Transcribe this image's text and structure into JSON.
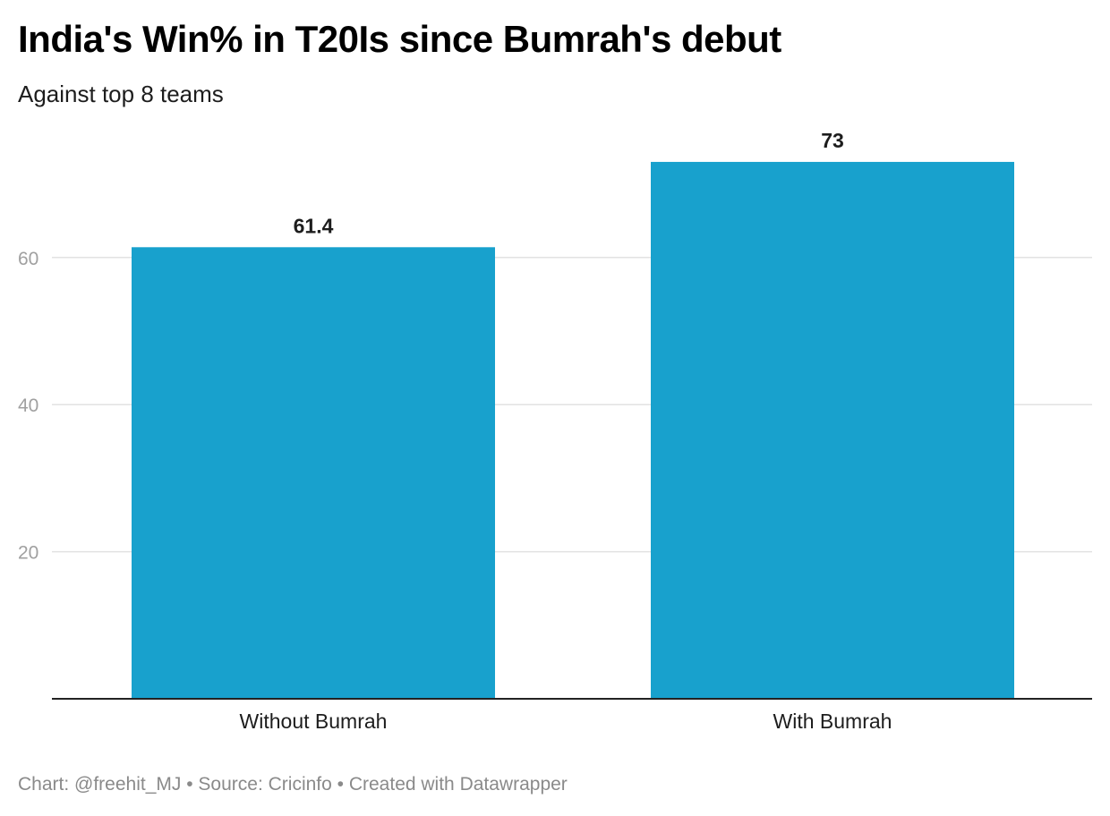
{
  "chart_data": {
    "type": "bar",
    "title": "India's Win% in T20Is since Bumrah's debut",
    "subtitle": "Against top 8 teams",
    "categories": [
      "Without Bumrah",
      "With Bumrah"
    ],
    "values": [
      61.4,
      73
    ],
    "value_labels": [
      "61.4",
      "73"
    ],
    "yticks": [
      20,
      40,
      60
    ],
    "ytick_labels": [
      "20",
      "40",
      "60"
    ],
    "ylim": [
      0,
      80
    ],
    "xlabel": "",
    "ylabel": "",
    "grid": true,
    "legend": "none",
    "bar_color": "#18a1cd"
  },
  "footer": {
    "chart_credit": "Chart: @freehit_MJ",
    "separator": " • ",
    "source": "Source: Cricinfo",
    "created_with": "Created with Datawrapper"
  }
}
